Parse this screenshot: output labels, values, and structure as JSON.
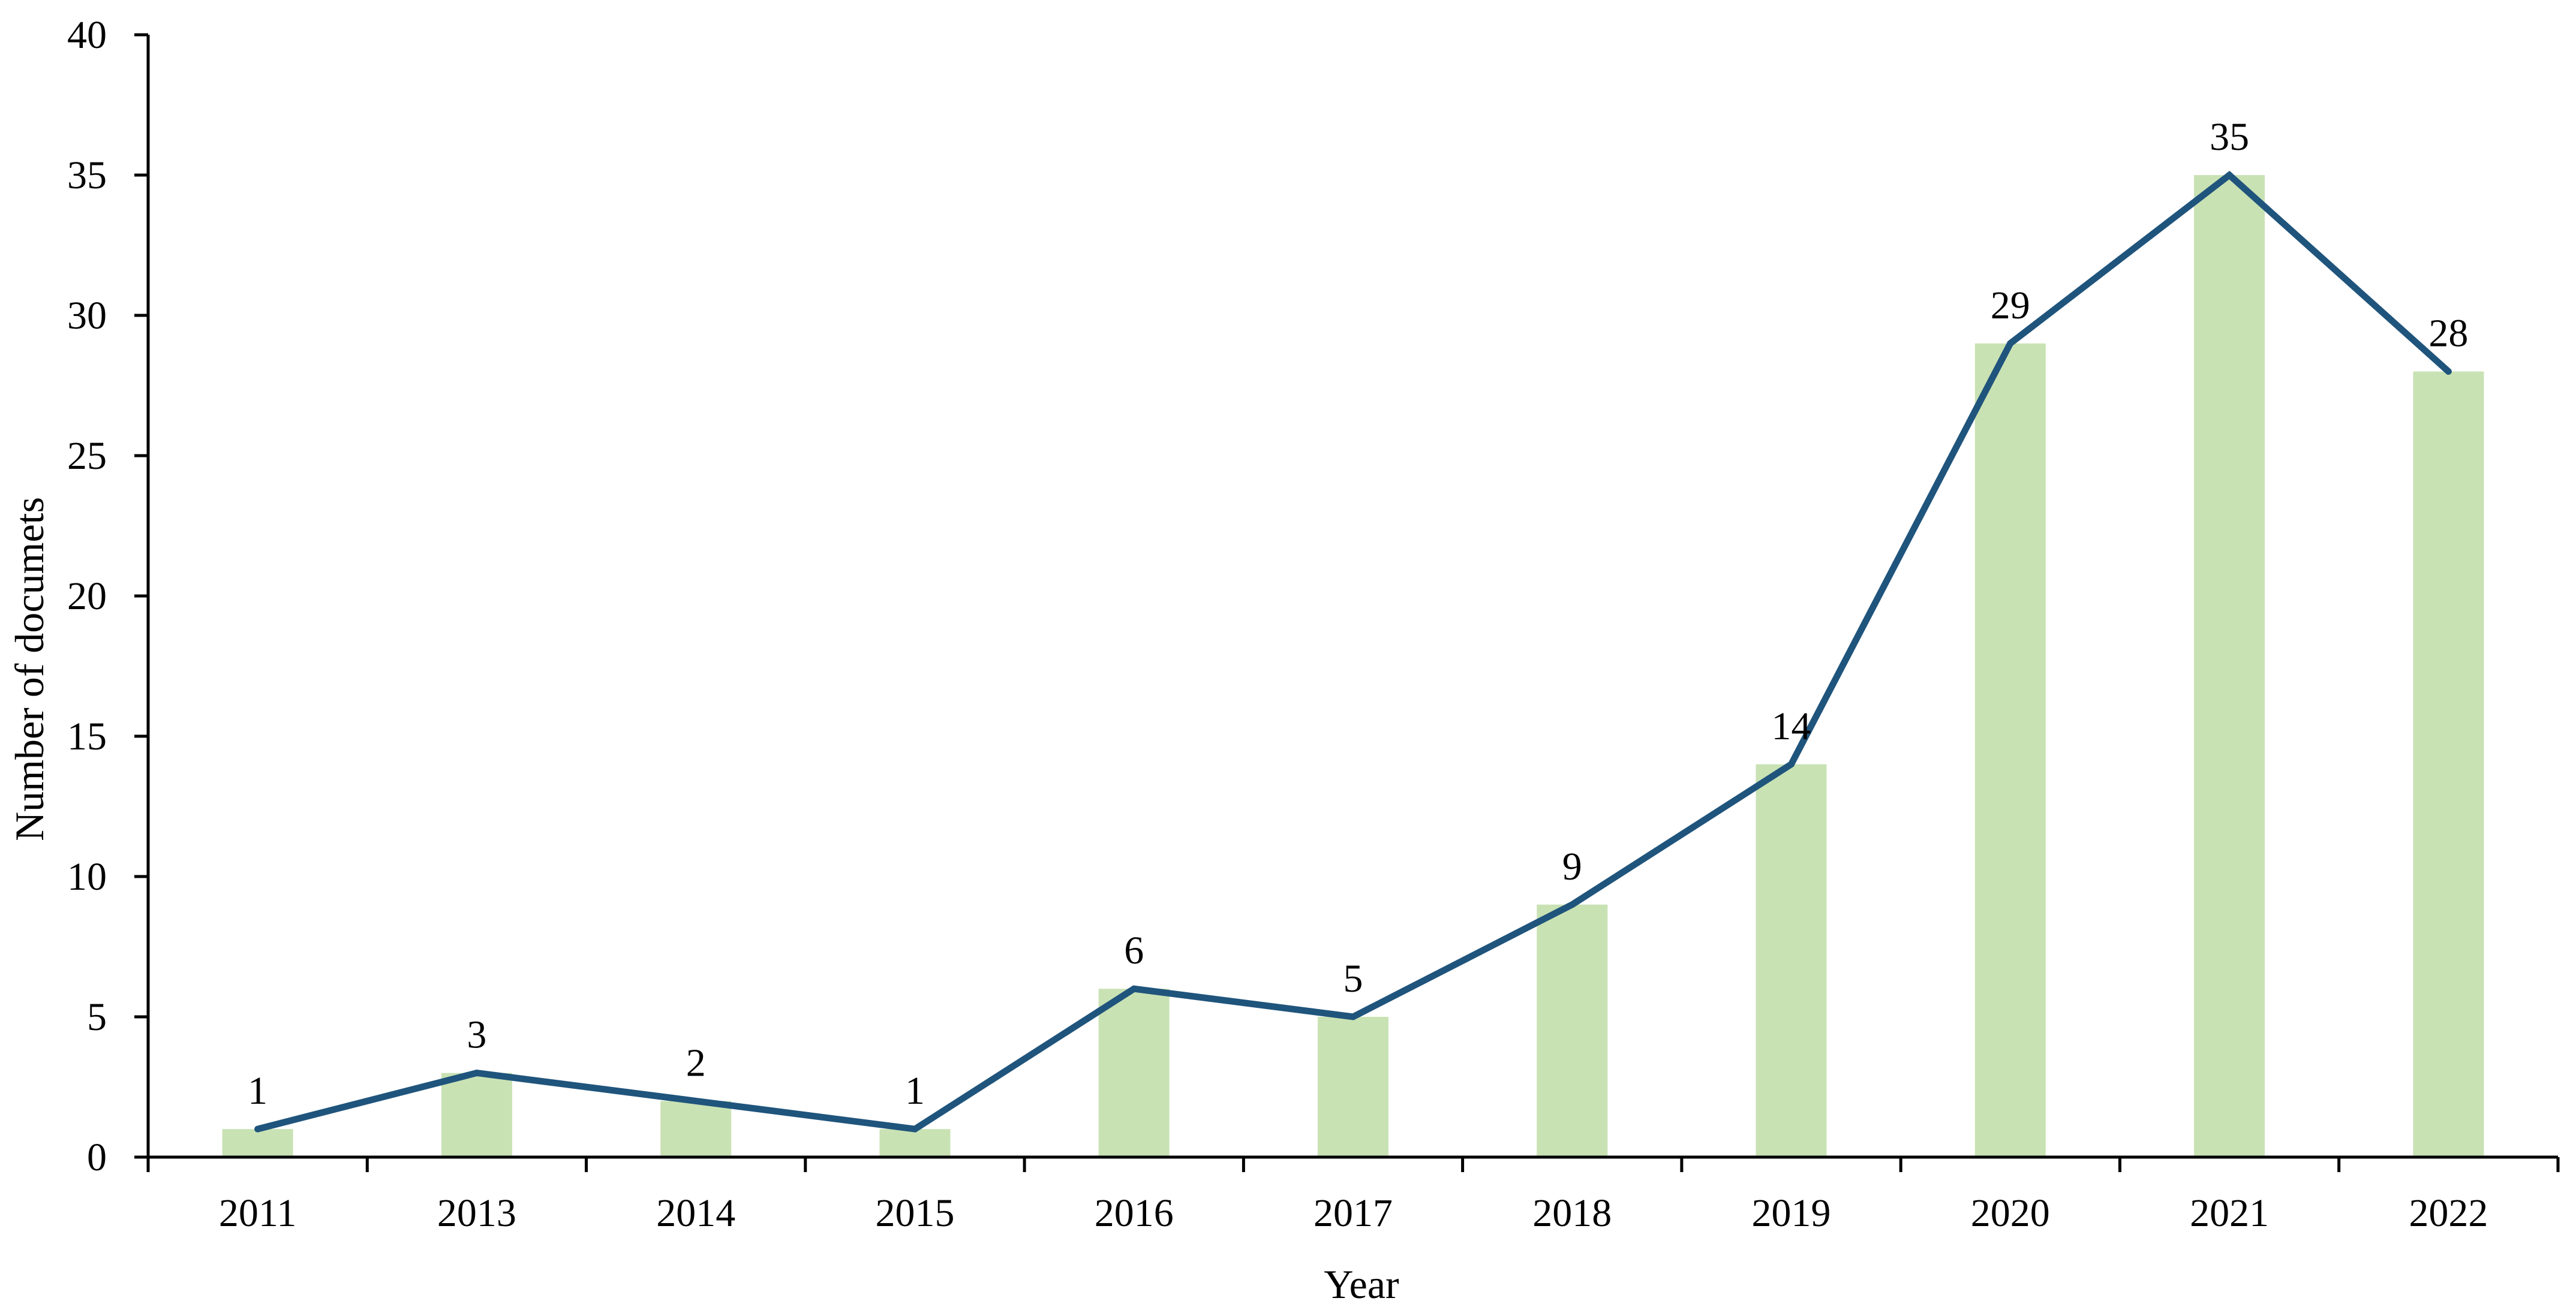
{
  "chart_data": {
    "type": "bar",
    "subtype": "bar-line-combo",
    "title": "",
    "xlabel": "Year",
    "ylabel": "Number of documets",
    "categories": [
      "2011",
      "2013",
      "2014",
      "2015",
      "2016",
      "2017",
      "2018",
      "2019",
      "2020",
      "2021",
      "2022"
    ],
    "series": [
      {
        "name": "documents-bars",
        "type": "bar",
        "color": "#c9e2b4",
        "values": [
          1,
          3,
          2,
          1,
          6,
          5,
          9,
          14,
          29,
          35,
          28
        ]
      },
      {
        "name": "documents-line",
        "type": "line",
        "color": "#1f547c",
        "values": [
          1,
          3,
          2,
          1,
          6,
          5,
          9,
          14,
          29,
          35,
          28
        ]
      }
    ],
    "data_labels": [
      "1",
      "3",
      "2",
      "1",
      "6",
      "5",
      "9",
      "14",
      "29",
      "35",
      "28"
    ],
    "ylim": [
      0,
      40
    ],
    "y_tick_step": 5,
    "y_tick_labels": [
      "0",
      "5",
      "10",
      "15",
      "20",
      "25",
      "30",
      "35",
      "40"
    ],
    "grid": "off",
    "legend": "none",
    "axis_color": "#000000",
    "text_color": "#000000",
    "background_color": "#ffffff"
  }
}
